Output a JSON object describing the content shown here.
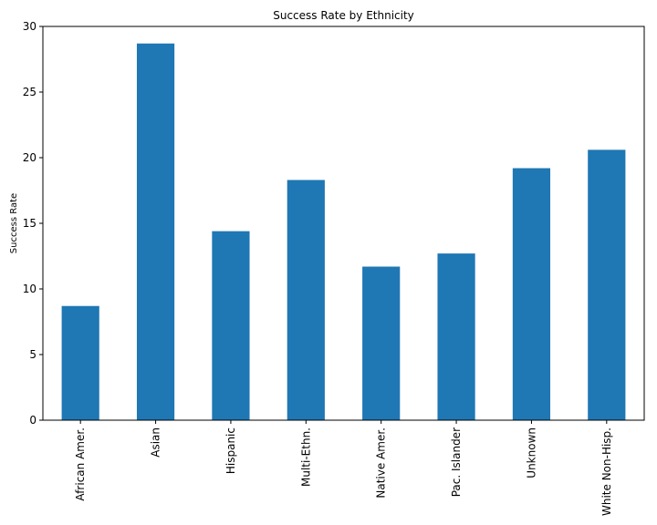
{
  "chart_data": {
    "type": "bar",
    "title": "Success Rate by Ethnicity",
    "xlabel": "",
    "ylabel": "Success Rate",
    "categories": [
      "African Amer.",
      "Asian",
      "Hispanic",
      "Multi-Ethn.",
      "Native Amer.",
      "Pac. Islander",
      "Unknown",
      "White Non-Hisp."
    ],
    "values": [
      8.7,
      28.7,
      14.4,
      18.3,
      11.7,
      12.7,
      19.2,
      20.6
    ],
    "ylim": [
      0,
      30
    ],
    "yticks": [
      "0",
      "5",
      "10",
      "15",
      "20",
      "25",
      "30"
    ],
    "grid": false,
    "bar_color": "#1f77b4"
  }
}
